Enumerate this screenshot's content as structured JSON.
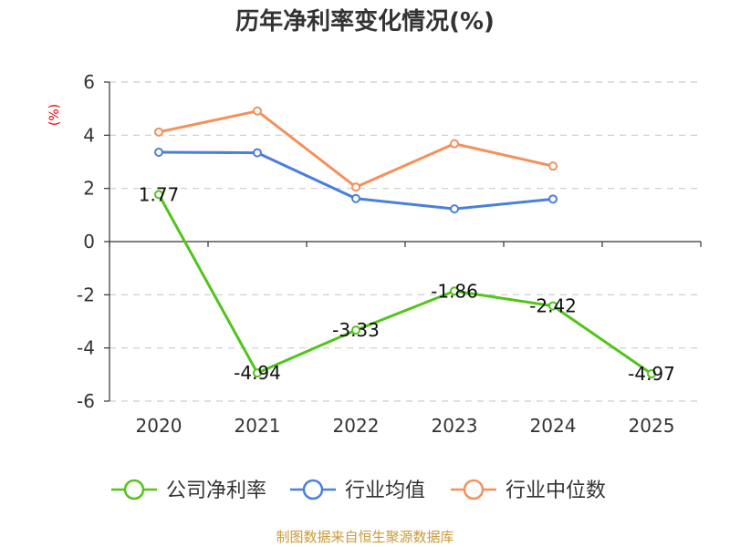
{
  "chart_data": {
    "type": "line",
    "title": "历年净利率变化情况(%)",
    "ylabel": "(%)",
    "categories": [
      "2020",
      "2021",
      "2022",
      "2023",
      "2024",
      "2025"
    ],
    "ylim": [
      -6,
      6
    ],
    "yticks": [
      6,
      4,
      2,
      0,
      -2,
      -4,
      -6
    ],
    "grid": true,
    "legend_position": "bottom",
    "series": [
      {
        "name": "公司净利率",
        "color": "#52c41a",
        "values": [
          1.77,
          -4.94,
          -3.33,
          -1.86,
          -2.42,
          -4.97
        ],
        "labels": [
          "1.77",
          "-4.94",
          "-3.33",
          "-1.86",
          "-2.42",
          "-4.97"
        ]
      },
      {
        "name": "行业均值",
        "color": "#4a7fdc",
        "values": [
          3.36,
          3.34,
          1.62,
          1.23,
          1.6,
          null
        ]
      },
      {
        "name": "行业中位数",
        "color": "#f5905a",
        "values": [
          4.12,
          4.91,
          2.05,
          3.68,
          2.84,
          null
        ]
      }
    ]
  },
  "source": "制图数据来自恒生聚源数据库"
}
